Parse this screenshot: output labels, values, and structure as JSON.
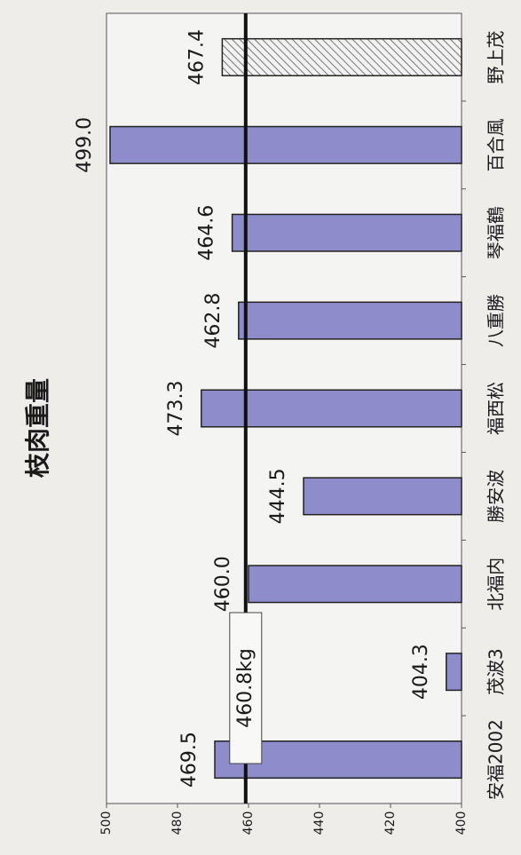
{
  "chart_data": {
    "type": "bar",
    "title": "枝肉重量",
    "categories": [
      "安福2002",
      "茂波3",
      "北福内",
      "勝安波",
      "福西松",
      "八重勝",
      "琴福鶴",
      "百合風",
      "野上茂"
    ],
    "values": [
      469.5,
      404.3,
      460.0,
      444.5,
      473.3,
      462.8,
      464.6,
      499.0,
      467.4
    ],
    "value_labels": [
      "469.5",
      "404.3",
      "460.0",
      "444.5",
      "473.3",
      "462.8",
      "464.6",
      "499.0",
      "467.4"
    ],
    "colors": [
      "#8f8ccc",
      "#8f8ccc",
      "#8f8ccc",
      "#8f8ccc",
      "#8f8ccc",
      "#8f8ccc",
      "#8f8ccc",
      "#8f8ccc",
      "hatched"
    ],
    "ylim": [
      400,
      500
    ],
    "yticks": [
      400,
      420,
      440,
      460,
      480,
      500
    ],
    "reference": {
      "value": 460.8,
      "label": "460.8kg"
    }
  }
}
